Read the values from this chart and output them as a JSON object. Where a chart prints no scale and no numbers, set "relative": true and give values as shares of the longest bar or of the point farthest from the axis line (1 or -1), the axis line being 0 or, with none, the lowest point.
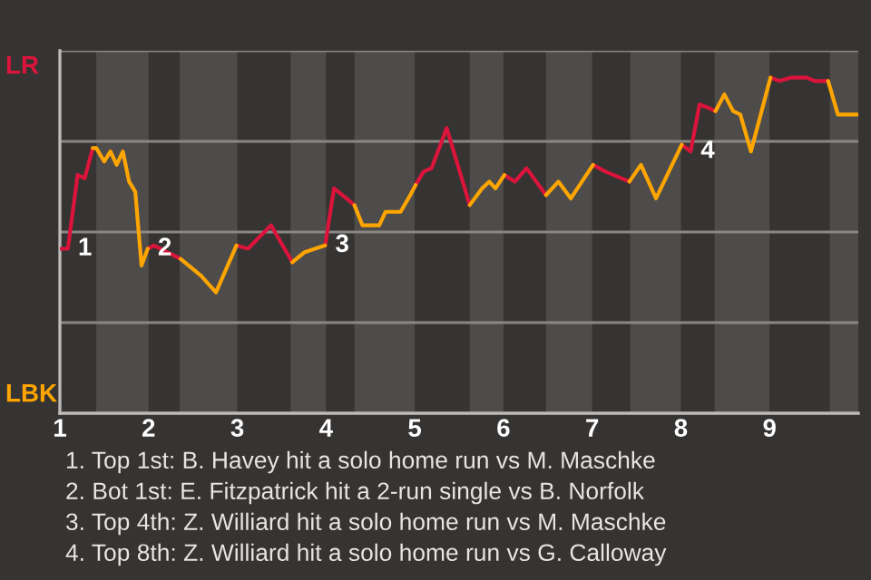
{
  "chart_data": {
    "type": "line",
    "relative": true,
    "x": [
      1.0,
      1.09,
      1.2,
      1.28,
      1.37,
      1.41,
      1.5,
      1.57,
      1.64,
      1.71,
      1.78,
      1.85,
      1.92,
      1.99,
      2.06,
      2.36,
      2.59,
      2.76,
      2.99,
      3.12,
      3.38,
      3.62,
      3.76,
      3.99,
      4.09,
      4.23,
      4.32,
      4.41,
      4.6,
      4.67,
      4.84,
      4.95,
      5.01,
      5.1,
      5.19,
      5.36,
      5.62,
      5.76,
      5.84,
      5.91,
      6.01,
      6.13,
      6.26,
      6.48,
      6.62,
      6.76,
      7.01,
      7.15,
      7.42,
      7.55,
      7.72,
      8.01,
      8.11,
      8.21,
      8.31,
      8.39,
      8.49,
      8.59,
      8.67,
      8.79,
      9.01,
      9.11,
      9.24,
      9.42,
      9.51,
      9.66,
      9.77,
      10.0
    ],
    "xlim": [
      1,
      10
    ],
    "xticks": [
      1,
      2,
      3,
      4,
      5,
      6,
      7,
      8,
      9
    ],
    "series": [
      {
        "name": "LR",
        "color": "#dc143c",
        "values": [
          0.49,
          0.49,
          0.71,
          0.7,
          0.79,
          null,
          null,
          null,
          null,
          null,
          null,
          null,
          null,
          0.49,
          0.5,
          0.46,
          null,
          null,
          0.5,
          0.49,
          0.56,
          0.45,
          null,
          0.5,
          0.67,
          0.64,
          0.62,
          null,
          null,
          null,
          null,
          null,
          0.68,
          0.72,
          0.73,
          0.85,
          0.62,
          null,
          null,
          null,
          0.71,
          0.69,
          0.73,
          0.65,
          null,
          null,
          0.74,
          0.72,
          0.69,
          null,
          null,
          0.8,
          0.78,
          0.92,
          0.91,
          0.9,
          null,
          null,
          null,
          null,
          1.0,
          0.99,
          1.0,
          1.0,
          0.99,
          0.99,
          null,
          null
        ]
      },
      {
        "name": "LBK",
        "color": "#ffa500",
        "values": [
          null,
          null,
          null,
          null,
          0.79,
          0.79,
          0.75,
          0.78,
          0.74,
          0.78,
          0.69,
          0.66,
          0.44,
          0.49,
          null,
          0.46,
          0.41,
          0.36,
          0.5,
          null,
          null,
          0.45,
          0.48,
          0.5,
          null,
          null,
          0.62,
          0.56,
          0.56,
          0.6,
          0.6,
          0.65,
          0.68,
          null,
          null,
          null,
          0.62,
          0.67,
          0.69,
          0.67,
          0.71,
          null,
          null,
          0.65,
          0.69,
          0.64,
          0.74,
          null,
          0.69,
          0.74,
          0.64,
          0.8,
          null,
          null,
          null,
          0.9,
          0.95,
          0.9,
          0.89,
          0.78,
          1.0,
          null,
          null,
          null,
          null,
          0.99,
          0.89,
          0.89
        ]
      }
    ],
    "bands": [
      {
        "axis": "x",
        "from": 1.41,
        "to": 2,
        "color": "#4e4c4a"
      },
      {
        "axis": "x",
        "from": 2.35,
        "to": 3,
        "color": "#4e4c4a"
      },
      {
        "axis": "x",
        "from": 3.6,
        "to": 4,
        "color": "#4e4c4a"
      },
      {
        "axis": "x",
        "from": 4.32,
        "to": 5,
        "color": "#4e4c4a"
      },
      {
        "axis": "x",
        "from": 5.62,
        "to": 6,
        "color": "#4e4c4a"
      },
      {
        "axis": "x",
        "from": 6.48,
        "to": 7,
        "color": "#4e4c4a"
      },
      {
        "axis": "x",
        "from": 7.43,
        "to": 8,
        "color": "#4e4c4a"
      },
      {
        "axis": "x",
        "from": 8.38,
        "to": 9,
        "color": "#4e4c4a"
      },
      {
        "axis": "x",
        "from": 9.68,
        "to": 10,
        "color": "#4e4c4a"
      }
    ],
    "annotations": [
      {
        "text": "1",
        "x": 1.09,
        "y": 0.49
      },
      {
        "text": "2",
        "x": 1.99,
        "y": 0.49
      },
      {
        "text": "3",
        "x": 3.99,
        "y": 0.5
      },
      {
        "text": "4",
        "x": 8.11,
        "y": 0.78
      },
      "1. Top 1st: B. Havey hit a solo home run vs M. Maschke",
      "2. Bot 1st: E. Fitzpatrick hit a 2-run single vs B. Norfolk",
      "3. Top 4th: Z. Williard hit a solo home run vs M. Maschke",
      "4. Top 8th: Z. Williard hit a solo home run vs G. Calloway"
    ],
    "grid": "y",
    "legend": false,
    "line_style": "solid",
    "marker": "none"
  }
}
